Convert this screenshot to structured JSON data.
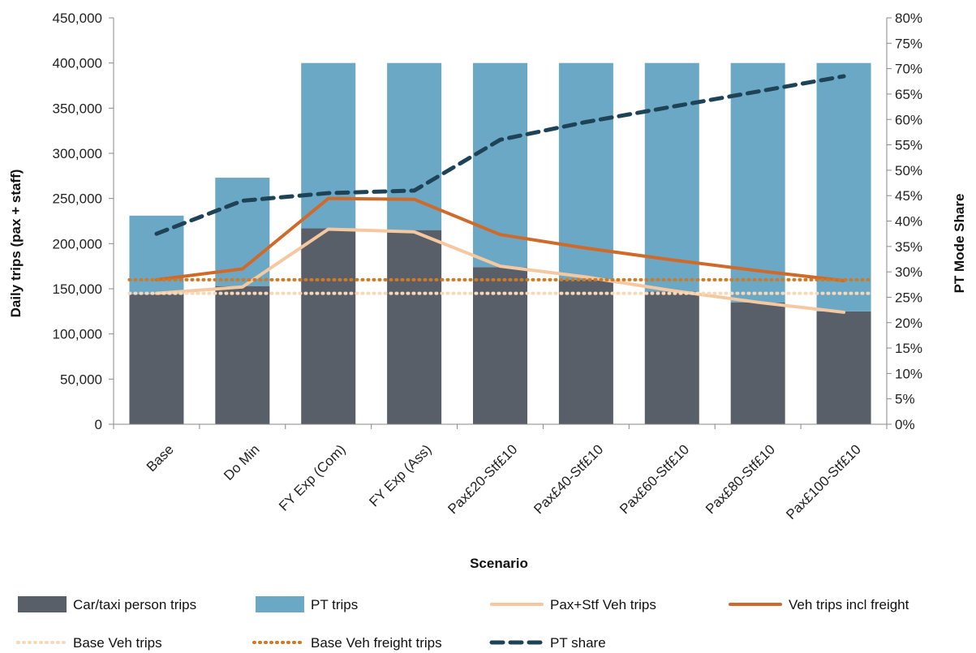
{
  "chart_data": {
    "type": "bar",
    "stacked": true,
    "title": "",
    "xlabel": "Scenario",
    "ylabel": "Daily trips (pax + staff)",
    "y2label": "PT Mode Share",
    "ylim": [
      0,
      450000
    ],
    "y2lim": [
      0,
      0.8
    ],
    "y_ticks": [
      "0",
      "50,000",
      "100,000",
      "150,000",
      "200,000",
      "250,000",
      "300,000",
      "350,000",
      "400,000",
      "450,000"
    ],
    "y2_ticks": [
      "0%",
      "5%",
      "10%",
      "15%",
      "20%",
      "25%",
      "30%",
      "35%",
      "40%",
      "45%",
      "50%",
      "55%",
      "60%",
      "65%",
      "70%",
      "75%",
      "80%"
    ],
    "grid": false,
    "legend_position": "bottom",
    "categories": [
      "Base",
      "Do Min",
      "FY Exp (Com)",
      "FY Exp (Ass)",
      "Pax£20-Stf£10",
      "Pax£40-Stf£10",
      "Pax£60-Stf£10",
      "Pax£80-Stf£10",
      "Pax£100-Stf£10"
    ],
    "bar_series": [
      {
        "name": "Car/taxi person trips",
        "color": "#595f69",
        "values": [
          144000,
          153000,
          217000,
          215000,
          174000,
          160000,
          147000,
          135000,
          125000
        ]
      },
      {
        "name": "PT trips",
        "color": "#6ba8c6",
        "values": [
          87000,
          120000,
          183000,
          185000,
          226000,
          240000,
          253000,
          265000,
          275000
        ]
      }
    ],
    "line_series": [
      {
        "name": "Pax+Stf Veh trips",
        "axis": "left",
        "color": "#f5c8a0",
        "style": "solid",
        "values": [
          145000,
          152000,
          216000,
          213000,
          175000,
          163000,
          148000,
          135000,
          124000
        ]
      },
      {
        "name": "Veh trips incl freight",
        "axis": "left",
        "color": "#cf6a2a",
        "style": "solid",
        "values": [
          160000,
          172000,
          250000,
          249000,
          210000,
          195000,
          182000,
          170000,
          159000
        ]
      },
      {
        "name": "Base Veh trips",
        "axis": "left",
        "color": "#f9d8b8",
        "style": "dotted",
        "values": [
          145000,
          145000,
          145000,
          145000,
          145000,
          145000,
          145000,
          145000,
          145000
        ]
      },
      {
        "name": "Base Veh freight trips",
        "axis": "left",
        "color": "#d07a23",
        "style": "dotted",
        "values": [
          160000,
          160000,
          160000,
          160000,
          160000,
          160000,
          160000,
          160000,
          160000
        ]
      },
      {
        "name": "PT share",
        "axis": "right",
        "color": "#1e4256",
        "style": "dashed",
        "values": [
          0.375,
          0.44,
          0.455,
          0.46,
          0.56,
          0.595,
          0.625,
          0.655,
          0.685
        ]
      }
    ]
  }
}
